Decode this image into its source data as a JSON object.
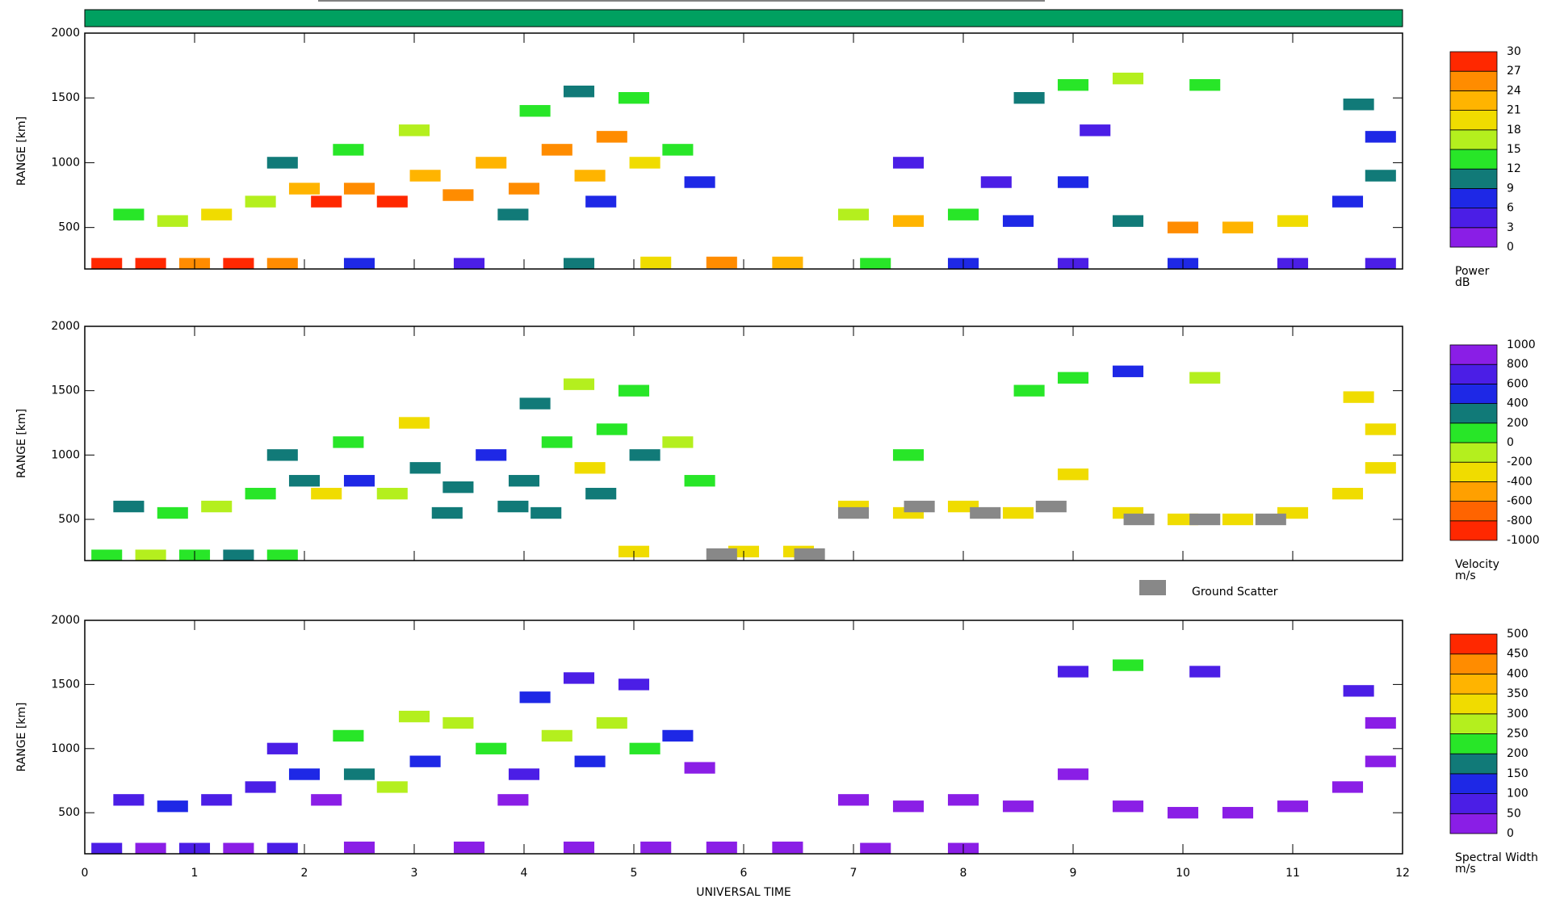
{
  "chart_data": [
    {
      "type": "heatmap",
      "ylabel": "RANGE [km]",
      "xlim": [
        0,
        12
      ],
      "ylim": [
        180,
        2000
      ],
      "xticks": [
        0,
        1,
        2,
        3,
        4,
        5,
        6,
        7,
        8,
        9,
        10,
        11,
        12
      ],
      "yticks": [
        500,
        1000,
        1500,
        2000
      ],
      "x": [
        0.2,
        0.6,
        1.0,
        1.4,
        1.8,
        2.5,
        3.5,
        4.5,
        5.2,
        5.8,
        6.4,
        7.2,
        8.0,
        9.0,
        10.0,
        11.0,
        11.8,
        0.4,
        0.8,
        1.2,
        1.6,
        2.0,
        2.2,
        2.5,
        2.8,
        3.1,
        3.4,
        3.7,
        4.0,
        4.3,
        4.6,
        4.8,
        5.1,
        5.4,
        5.6,
        2.4,
        3.0,
        4.5,
        4.1,
        5.0,
        1.8,
        3.9,
        4.7,
        7.0,
        7.5,
        8.0,
        8.5,
        9.0,
        8.3,
        9.5,
        10.0,
        10.5,
        11.0,
        11.5,
        11.8,
        11.8,
        9.0,
        9.5,
        10.2,
        8.6,
        11.6,
        7.5,
        9.2
      ],
      "y": [
        220,
        220,
        220,
        220,
        220,
        220,
        220,
        220,
        230,
        230,
        230,
        220,
        220,
        220,
        220,
        220,
        220,
        600,
        550,
        600,
        700,
        800,
        700,
        800,
        700,
        900,
        750,
        1000,
        800,
        1100,
        900,
        1200,
        1000,
        1100,
        850,
        1100,
        1250,
        1550,
        1400,
        1500,
        1000,
        600,
        700,
        600,
        550,
        600,
        550,
        850,
        850,
        550,
        500,
        500,
        550,
        700,
        900,
        1200,
        1600,
        1650,
        1600,
        1500,
        1450,
        1000,
        1250
      ],
      "values": [
        27,
        27,
        25,
        27,
        24,
        6,
        3,
        9,
        20,
        24,
        21,
        12,
        6,
        3,
        6,
        3,
        3,
        12,
        15,
        18,
        15,
        21,
        27,
        24,
        27,
        21,
        24,
        21,
        24,
        24,
        21,
        24,
        18,
        12,
        6,
        12,
        15,
        9,
        12,
        12,
        9,
        9,
        6,
        15,
        21,
        12,
        6,
        6,
        3,
        9,
        24,
        21,
        18,
        6,
        9,
        6,
        12,
        15,
        12,
        9,
        9,
        3,
        3
      ],
      "colorbar": {
        "label": "Power",
        "units": "dB",
        "ticks": [
          0,
          3,
          6,
          9,
          12,
          15,
          18,
          21,
          24,
          27,
          30
        ],
        "colors": [
          "#8a1ee6",
          "#4b1ee6",
          "#1e28e6",
          "#117a78",
          "#28e628",
          "#b4ef1e",
          "#f0dc00",
          "#ffb400",
          "#ff8c00",
          "#ff2800"
        ]
      }
    },
    {
      "type": "heatmap",
      "ylabel": "RANGE [km]",
      "xlim": [
        0,
        12
      ],
      "ylim": [
        180,
        2000
      ],
      "xticks": [
        0,
        1,
        2,
        3,
        4,
        5,
        6,
        7,
        8,
        9,
        10,
        11,
        12
      ],
      "yticks": [
        500,
        1000,
        1500,
        2000
      ],
      "x": [
        0.2,
        0.6,
        1.0,
        1.4,
        1.8,
        0.4,
        0.8,
        1.2,
        1.6,
        2.0,
        2.2,
        2.5,
        2.8,
        3.1,
        3.4,
        3.7,
        4.0,
        4.3,
        4.6,
        4.8,
        5.1,
        5.4,
        5.6,
        2.4,
        3.0,
        4.5,
        4.1,
        5.0,
        1.8,
        3.9,
        4.7,
        3.3,
        4.2,
        7.0,
        7.5,
        8.0,
        8.5,
        9.0,
        9.5,
        10.0,
        10.5,
        11.0,
        11.5,
        11.8,
        11.8,
        9.0,
        9.5,
        10.2,
        8.6,
        11.6,
        7.5,
        6.0,
        5.0,
        6.5
      ],
      "y": [
        220,
        220,
        220,
        220,
        220,
        600,
        550,
        600,
        700,
        800,
        700,
        800,
        700,
        900,
        750,
        1000,
        800,
        1100,
        900,
        1200,
        1000,
        1100,
        800,
        1100,
        1250,
        1550,
        1400,
        1500,
        1000,
        600,
        700,
        550,
        550,
        600,
        550,
        600,
        550,
        850,
        550,
        500,
        500,
        550,
        700,
        900,
        1200,
        1600,
        1650,
        1600,
        1500,
        1450,
        1000,
        250,
        250,
        250
      ],
      "values": [
        100,
        -100,
        100,
        200,
        100,
        200,
        100,
        -100,
        100,
        300,
        -300,
        500,
        -100,
        300,
        200,
        500,
        300,
        100,
        -300,
        100,
        300,
        -100,
        150,
        100,
        -300,
        -100,
        300,
        100,
        200,
        350,
        250,
        300,
        250,
        -300,
        -300,
        -300,
        -300,
        -300,
        -300,
        -300,
        -300,
        -300,
        -300,
        -300,
        -300,
        100,
        450,
        -100,
        100,
        -300,
        100,
        -300,
        -300,
        -300
      ],
      "colorbar": {
        "label": "Velocity",
        "units": "m/s",
        "ticks": [
          -1000,
          -800,
          -600,
          -400,
          -200,
          0,
          200,
          400,
          600,
          800,
          1000
        ],
        "colors": [
          "#ff2800",
          "#ff6400",
          "#ffa000",
          "#f0dc00",
          "#b4ef1e",
          "#28e628",
          "#117a78",
          "#1e28e6",
          "#4b1ee6",
          "#8a1ee6"
        ]
      },
      "ground_scatter": {
        "label": "Ground Scatter",
        "color": "#888888",
        "x": [
          7.0,
          7.6,
          8.2,
          8.8,
          9.6,
          10.2,
          10.8,
          5.8,
          6.6
        ],
        "y": [
          550,
          600,
          550,
          600,
          500,
          500,
          500,
          230,
          230
        ]
      }
    },
    {
      "type": "heatmap",
      "ylabel": "RANGE [km]",
      "xlabel": "UNIVERSAL TIME",
      "xlim": [
        0,
        12
      ],
      "ylim": [
        180,
        2000
      ],
      "xticks": [
        0,
        1,
        2,
        3,
        4,
        5,
        6,
        7,
        8,
        9,
        10,
        11,
        12
      ],
      "yticks": [
        500,
        1000,
        1500,
        2000
      ],
      "x": [
        0.2,
        0.6,
        1.0,
        1.4,
        1.8,
        2.5,
        3.5,
        4.5,
        5.2,
        5.8,
        6.4,
        7.2,
        8.0,
        0.4,
        0.8,
        1.2,
        1.6,
        2.0,
        2.2,
        2.5,
        2.8,
        3.1,
        3.4,
        3.7,
        4.0,
        4.3,
        4.6,
        4.8,
        5.1,
        5.4,
        5.6,
        2.4,
        3.0,
        4.5,
        4.1,
        5.0,
        1.8,
        3.9,
        7.0,
        7.5,
        8.0,
        8.5,
        9.0,
        9.5,
        10.0,
        10.5,
        11.0,
        11.5,
        11.8,
        11.8,
        9.0,
        9.5,
        10.2,
        11.6
      ],
      "y": [
        220,
        220,
        220,
        220,
        220,
        230,
        230,
        230,
        230,
        230,
        230,
        220,
        220,
        600,
        550,
        600,
        700,
        800,
        600,
        800,
        700,
        900,
        1200,
        1000,
        800,
        1100,
        900,
        1200,
        1000,
        1100,
        850,
        1100,
        1250,
        1550,
        1400,
        1500,
        1000,
        600,
        600,
        550,
        600,
        550,
        800,
        550,
        500,
        500,
        550,
        700,
        900,
        1200,
        1600,
        1650,
        1600,
        1450
      ],
      "values": [
        60,
        20,
        80,
        20,
        60,
        20,
        20,
        20,
        20,
        20,
        20,
        20,
        20,
        80,
        120,
        60,
        80,
        120,
        20,
        160,
        260,
        120,
        260,
        220,
        80,
        280,
        120,
        260,
        200,
        120,
        20,
        220,
        280,
        80,
        120,
        60,
        80,
        20,
        20,
        20,
        20,
        20,
        20,
        20,
        20,
        20,
        20,
        20,
        20,
        20,
        80,
        220,
        80,
        60
      ],
      "colorbar": {
        "label": "Spectral Width",
        "units": "m/s",
        "ticks": [
          0,
          50,
          100,
          150,
          200,
          250,
          300,
          350,
          400,
          450,
          500
        ],
        "colors": [
          "#8a1ee6",
          "#4b1ee6",
          "#1e28e6",
          "#117a78",
          "#28e628",
          "#b4ef1e",
          "#f0dc00",
          "#ffb400",
          "#ff8c00",
          "#ff2800"
        ]
      }
    }
  ]
}
